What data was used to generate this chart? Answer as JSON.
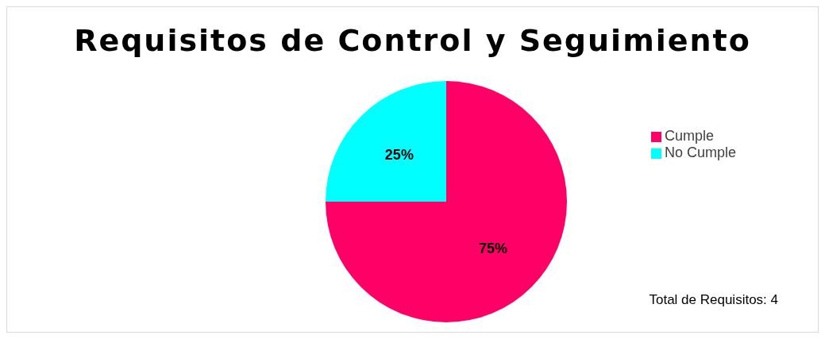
{
  "chart_data": {
    "type": "pie",
    "title": "Requisitos de Control y Seguimiento",
    "categories": [
      "Cumple",
      "No Cumple"
    ],
    "values": [
      75,
      25
    ],
    "colors": [
      "#ff0066",
      "#00ffff"
    ],
    "value_labels": [
      "75%",
      "25%"
    ],
    "legend": "right",
    "annotations": [
      "Total de Requisitos: 4"
    ]
  }
}
